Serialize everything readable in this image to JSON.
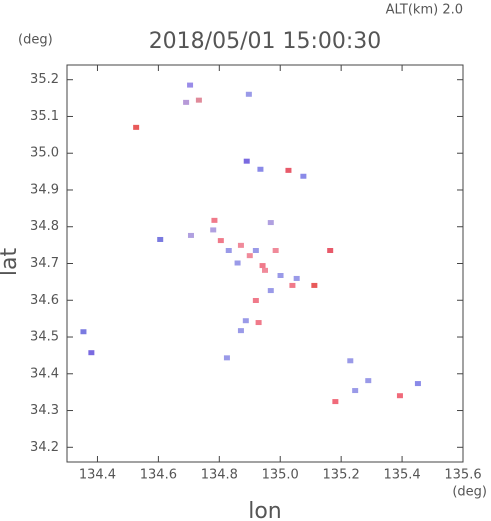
{
  "chart_data": {
    "type": "scatter",
    "title": "2018/05/01 15:00:30",
    "annotation": "ALT(km)  2.0",
    "y_unit": "(deg)",
    "x_unit": "(deg)",
    "xlabel": "lon",
    "ylabel": "lat",
    "xlim": [
      134.3,
      135.6
    ],
    "ylim": [
      34.16,
      35.24
    ],
    "xticks": [
      134.4,
      134.6,
      134.8,
      {
        "value": 135.0,
        "label": "135.0"
      },
      135.2,
      135.4,
      135.6
    ],
    "yticks": [
      34.2,
      34.3,
      34.4,
      34.5,
      34.6,
      34.7,
      34.8,
      34.9,
      {
        "value": 35.0,
        "label": "35.0"
      },
      35.1,
      35.2
    ],
    "x": [
      134.704,
      134.691,
      134.733,
      134.527,
      134.897,
      134.89,
      134.935,
      135.027,
      135.076,
      134.606,
      134.707,
      134.784,
      134.805,
      134.831,
      134.871,
      134.92,
      134.969,
      134.985,
      134.942,
      135.001,
      135.04,
      135.054,
      134.969,
      134.92,
      134.887,
      134.929,
      134.871,
      134.825,
      135.112,
      135.164,
      134.354,
      134.38,
      135.23,
      135.289,
      135.246,
      135.181,
      135.393,
      135.452,
      134.9,
      134.86,
      134.95,
      134.78
    ],
    "values": [
      35.184,
      35.137,
      35.143,
      35.069,
      35.159,
      34.977,
      34.955,
      34.952,
      34.936,
      34.764,
      34.775,
      34.816,
      34.761,
      34.734,
      34.748,
      34.734,
      34.81,
      34.734,
      34.693,
      34.666,
      34.639,
      34.658,
      34.625,
      34.598,
      34.543,
      34.538,
      34.516,
      34.442,
      34.639,
      34.734,
      34.513,
      34.456,
      34.434,
      34.38,
      34.353,
      34.323,
      34.339,
      34.372,
      34.72,
      34.7,
      34.68,
      34.79
    ],
    "colors": [
      "#9a8ce8",
      "#b79ad8",
      "#e08a9a",
      "#e85a5a",
      "#9a9ae8",
      "#7a6ae0",
      "#8a8ae8",
      "#e85a6a",
      "#8a8ae8",
      "#7a7ae0",
      "#b0a0e0",
      "#f07a8a",
      "#f07a8a",
      "#9a9ae8",
      "#f08a9a",
      "#9a9ae8",
      "#b0a0e0",
      "#f08a9a",
      "#f07a8a",
      "#9a9ae8",
      "#f07a8a",
      "#9a9ae8",
      "#9a9ae8",
      "#f07a8a",
      "#9a9ae8",
      "#f07a8a",
      "#9a9ae8",
      "#9a9ae8",
      "#e85a5a",
      "#e85a6a",
      "#7a7ae0",
      "#7a6ae0",
      "#9a9ae8",
      "#9a9ae8",
      "#9a9ae8",
      "#f06a7a",
      "#f06a7a",
      "#8a8ae8",
      "#f08a9a",
      "#9a9ae8",
      "#f08a9a",
      "#b0a0e0"
    ]
  }
}
